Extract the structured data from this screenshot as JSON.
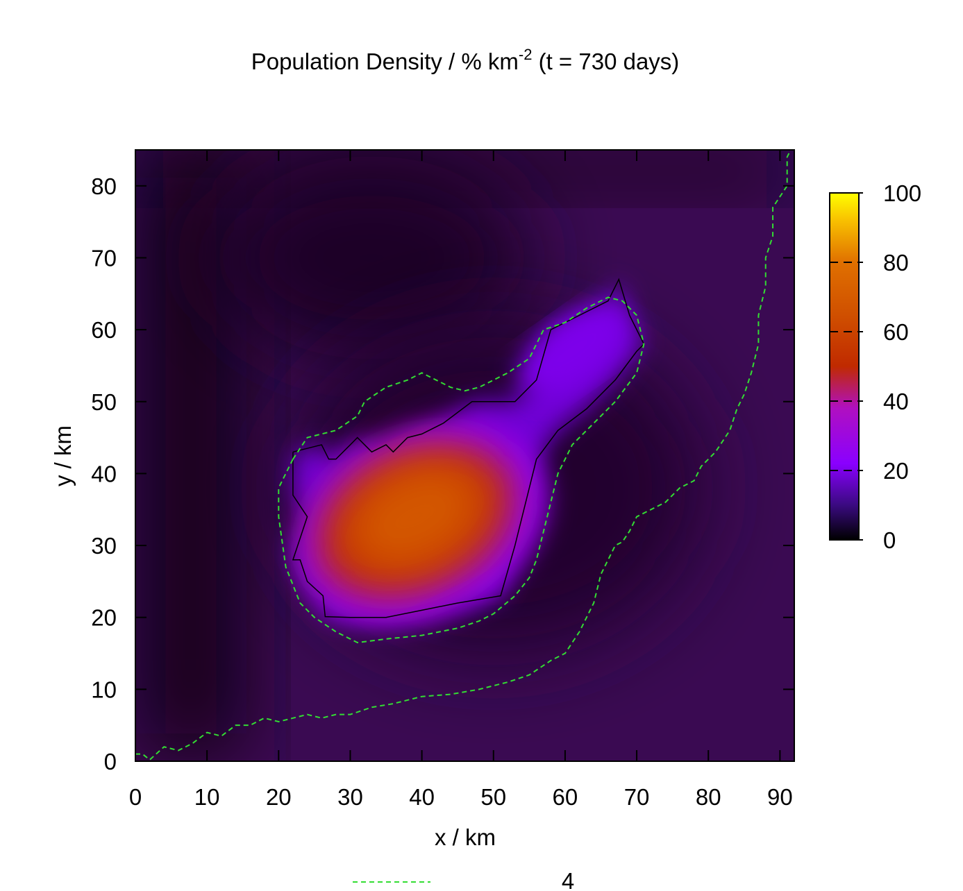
{
  "chart_data": {
    "type": "heatmap",
    "title_main": "Population Density / % km",
    "title_superscript": "-2",
    "title_suffix": " (t = 730 days)",
    "xlabel": "x / km",
    "ylabel": "y / km",
    "xlim": [
      0,
      92
    ],
    "ylim": [
      0,
      85
    ],
    "xticks": [
      0,
      10,
      20,
      30,
      40,
      50,
      60,
      70,
      80,
      90
    ],
    "yticks": [
      0,
      10,
      20,
      30,
      40,
      50,
      60,
      70,
      80
    ],
    "colorbar": {
      "range": [
        0,
        100
      ],
      "ticks": [
        0,
        20,
        40,
        60,
        80,
        100
      ],
      "stops": [
        {
          "value": 0,
          "color": "#000000"
        },
        {
          "value": 10,
          "color": "#3a0a80"
        },
        {
          "value": 22,
          "color": "#8a00ff"
        },
        {
          "value": 38,
          "color": "#b010c0"
        },
        {
          "value": 50,
          "color": "#c02a00"
        },
        {
          "value": 65,
          "color": "#d05000"
        },
        {
          "value": 80,
          "color": "#e07000"
        },
        {
          "value": 92,
          "color": "#f8c000"
        },
        {
          "value": 100,
          "color": "#ffff00"
        }
      ],
      "contour_marks": [
        20,
        40,
        60,
        80
      ]
    },
    "density_description": {
      "peak_value": 68,
      "peak_location": [
        39,
        34
      ]
    },
    "boundary_outline": [
      [
        22,
        43
      ],
      [
        26,
        44
      ],
      [
        27,
        42
      ],
      [
        28,
        42
      ],
      [
        31,
        45
      ],
      [
        32,
        44
      ],
      [
        33,
        43
      ],
      [
        35,
        44
      ],
      [
        36,
        43
      ],
      [
        38,
        45
      ],
      [
        40,
        45.5
      ],
      [
        43,
        47
      ],
      [
        47,
        50
      ],
      [
        53,
        50
      ],
      [
        56,
        53
      ],
      [
        58,
        60
      ],
      [
        62,
        62
      ],
      [
        66,
        64
      ],
      [
        67.5,
        67
      ],
      [
        69,
        62
      ],
      [
        71,
        58
      ],
      [
        70,
        57
      ],
      [
        67,
        53
      ],
      [
        63,
        49
      ],
      [
        59,
        46
      ],
      [
        56,
        42
      ],
      [
        53,
        30
      ],
      [
        51,
        23
      ],
      [
        45,
        22
      ],
      [
        40,
        21
      ],
      [
        35,
        20
      ],
      [
        30,
        20
      ],
      [
        26.5,
        20.1
      ],
      [
        26.2,
        23
      ],
      [
        24,
        25
      ],
      [
        23,
        28
      ],
      [
        22,
        28
      ],
      [
        24,
        34
      ],
      [
        22,
        37
      ],
      [
        22,
        43
      ]
    ],
    "contours": [
      {
        "label": "4",
        "color": "#33dd33",
        "style": "dashed",
        "lines": [
          [
            [
              22,
              42
            ],
            [
              24,
              45
            ],
            [
              28,
              46
            ],
            [
              31,
              48
            ],
            [
              32,
              50
            ],
            [
              35,
              52
            ],
            [
              38,
              53
            ],
            [
              40,
              54
            ],
            [
              42,
              53
            ],
            [
              44,
              52
            ],
            [
              46,
              51.5
            ],
            [
              48,
              52
            ],
            [
              52,
              54
            ],
            [
              55,
              56
            ],
            [
              57,
              60
            ],
            [
              60,
              61
            ],
            [
              63,
              63
            ],
            [
              66,
              64.5
            ],
            [
              68,
              64
            ],
            [
              70,
              62
            ],
            [
              71,
              58
            ],
            [
              70,
              54
            ],
            [
              67,
              50
            ],
            [
              63,
              46
            ],
            [
              61,
              44
            ],
            [
              59,
              40
            ],
            [
              58,
              36
            ],
            [
              57,
              32
            ],
            [
              56,
              28
            ],
            [
              55,
              25.5
            ],
            [
              53,
              23
            ],
            [
              50,
              20.5
            ],
            [
              48,
              19.5
            ],
            [
              45,
              18.5
            ],
            [
              40,
              17.5
            ],
            [
              35,
              17
            ],
            [
              31,
              16.5
            ],
            [
              28,
              18
            ],
            [
              25,
              20
            ],
            [
              23,
              22
            ],
            [
              21,
              27
            ],
            [
              20,
              34
            ],
            [
              20,
              38
            ],
            [
              21,
              40
            ],
            [
              22,
              42
            ]
          ],
          [
            [
              0,
              1
            ],
            [
              1,
              1
            ],
            [
              2,
              0.2
            ],
            [
              4,
              2
            ],
            [
              6,
              1.5
            ],
            [
              8,
              2.5
            ],
            [
              10,
              4
            ],
            [
              12,
              3.5
            ],
            [
              14,
              5
            ],
            [
              16,
              5
            ],
            [
              18,
              6
            ],
            [
              20,
              5.5
            ],
            [
              22,
              6
            ],
            [
              24,
              6.5
            ],
            [
              26,
              6
            ],
            [
              28,
              6.5
            ],
            [
              30,
              6.5
            ],
            [
              33,
              7.5
            ],
            [
              36,
              8
            ],
            [
              40,
              9
            ],
            [
              44,
              9.3
            ],
            [
              48,
              10
            ],
            [
              52,
              11
            ],
            [
              55,
              12
            ],
            [
              58,
              14
            ],
            [
              60,
              15
            ],
            [
              62,
              18
            ],
            [
              64,
              22
            ],
            [
              65,
              26
            ],
            [
              67,
              30
            ],
            [
              68,
              30.5
            ],
            [
              69,
              32
            ],
            [
              70,
              34
            ],
            [
              72,
              35
            ],
            [
              74,
              36
            ],
            [
              76,
              38
            ],
            [
              78,
              39
            ],
            [
              79,
              41
            ],
            [
              81,
              43
            ],
            [
              83,
              46
            ],
            [
              84,
              49
            ],
            [
              85,
              51
            ],
            [
              86,
              54
            ],
            [
              87,
              58
            ],
            [
              87,
              62
            ],
            [
              88,
              66
            ],
            [
              88,
              70
            ],
            [
              89,
              73
            ],
            [
              89,
              77
            ],
            [
              91,
              80
            ],
            [
              91,
              84
            ],
            [
              92,
              86
            ]
          ]
        ]
      }
    ],
    "legend": {
      "label": "4",
      "placement": "bottom-center"
    }
  }
}
